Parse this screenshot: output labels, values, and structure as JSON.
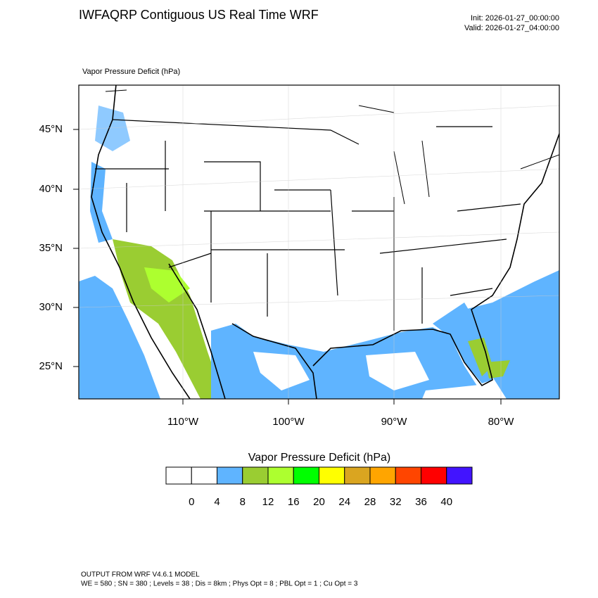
{
  "header": {
    "title": "IWFAQRP Contiguous US Real Time WRF",
    "init": "Init: 2026-01-27_00:00:00",
    "valid": "Valid: 2026-01-27_04:00:00"
  },
  "map": {
    "subtitle": "Vapor Pressure Deficit   (hPa)",
    "lat_labels": [
      "45°N",
      "40°N",
      "35°N",
      "30°N",
      "25°N"
    ],
    "lon_labels": [
      "110°W",
      "100°W",
      "90°W",
      "80°W"
    ]
  },
  "colorbar": {
    "title": "Vapor Pressure Deficit  (hPa)",
    "labels": [
      0,
      4,
      8,
      12,
      16,
      20,
      24,
      28,
      32,
      36,
      40
    ],
    "colors": [
      "#ffffff",
      "#ffffff",
      "#5fb4ff",
      "#9acd32",
      "#adff2f",
      "#00ff00",
      "#ffff00",
      "#daa520",
      "#ffa500",
      "#ff4500",
      "#ff0000",
      "#4214ff"
    ]
  },
  "footer": {
    "line1": "OUTPUT FROM WRF V4.6.1 MODEL",
    "line2": "WE = 580 ; SN = 380 ; Levels = 38 ; Dis = 8km ; Phys Opt = 8 ; PBL Opt = 1 ; Cu Opt = 3"
  }
}
